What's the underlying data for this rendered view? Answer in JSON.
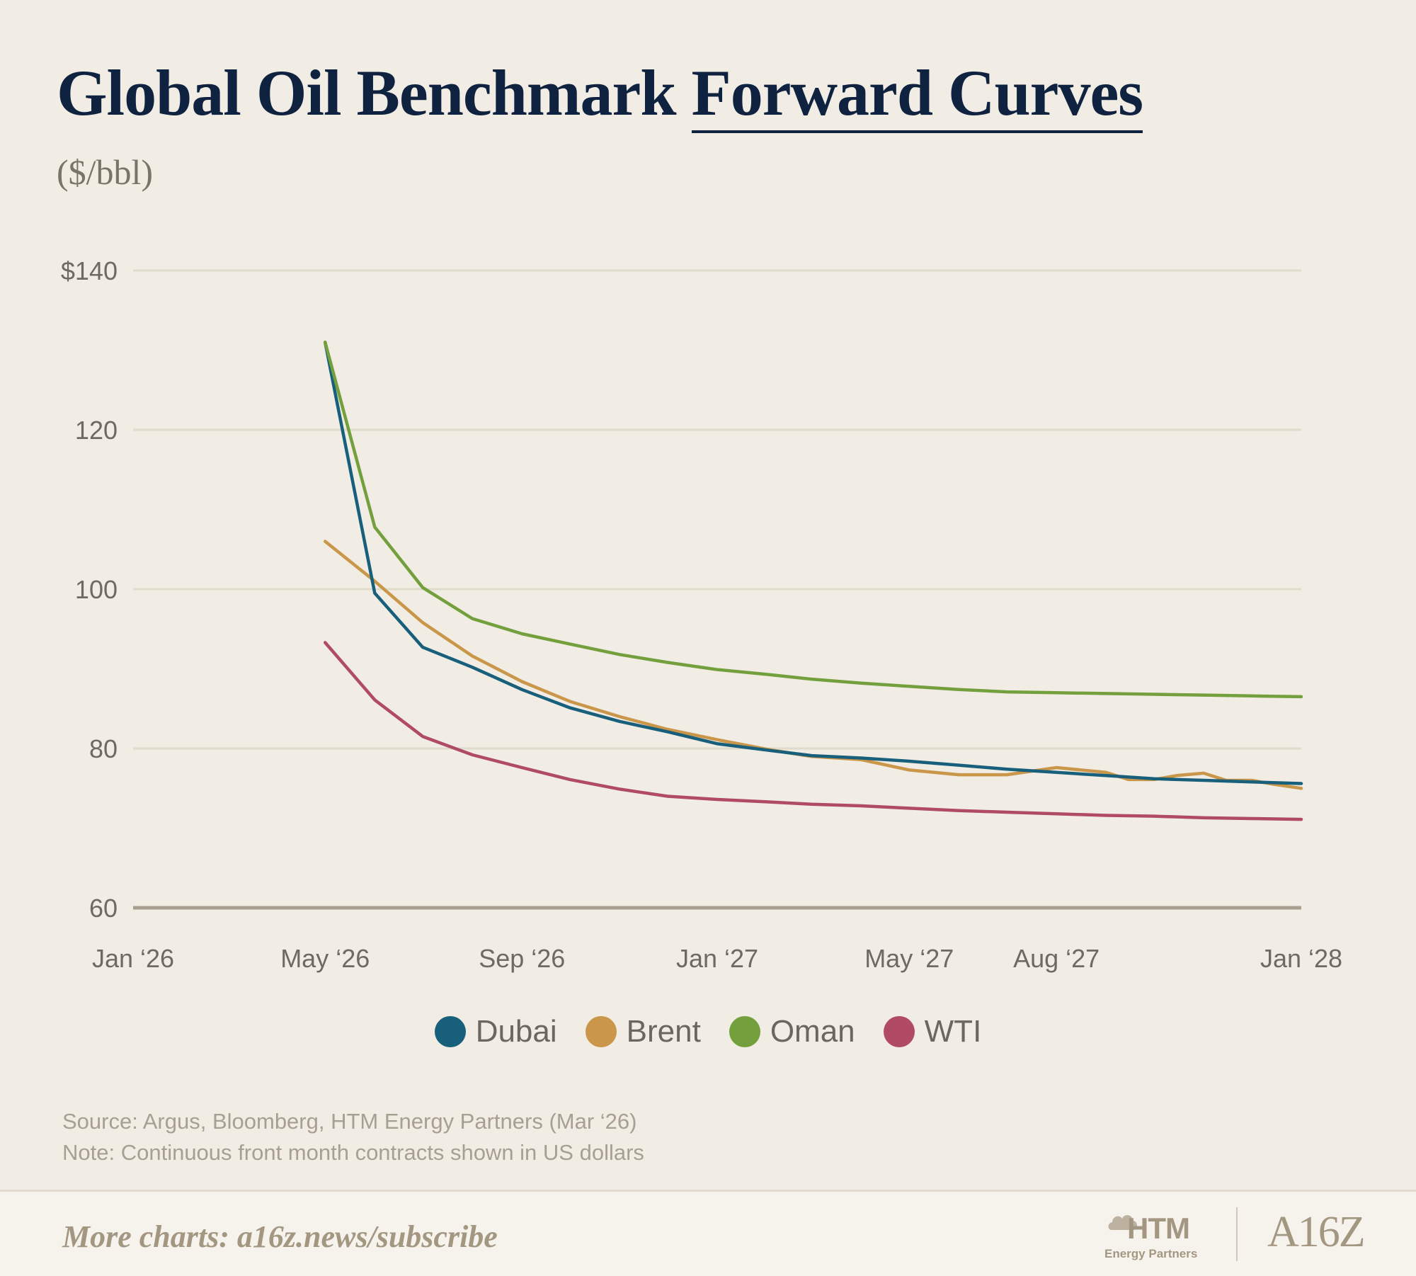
{
  "header": {
    "title_plain": "Global Oil Benchmark",
    "title_underlined": "Forward Curves",
    "subtitle": "($/bbl)"
  },
  "chart_data": {
    "type": "line",
    "title": "Global Oil Benchmark Forward Curves",
    "ylabel": "($/bbl)",
    "xlabel": "",
    "ylim": [
      60,
      140
    ],
    "yticks": [
      60,
      80,
      100,
      120,
      140
    ],
    "ytick_labels": [
      "60",
      "80",
      "100",
      "120",
      "$140"
    ],
    "xlim": [
      "2026-01",
      "2028-01"
    ],
    "xticks": [
      "2026-01",
      "2026-05",
      "2026-09",
      "2027-01",
      "2027-05",
      "2027-08",
      "2028-01"
    ],
    "xtick_labels": [
      "Jan ‘26",
      "May ‘26",
      "Sep ‘26",
      "Jan ‘27",
      "May ‘27",
      "Aug ‘27",
      "Jan ‘28"
    ],
    "grid": "horizontal",
    "legend_position": "bottom-center",
    "series": [
      {
        "name": "Dubai",
        "color": "#185f7b",
        "x": [
          "2026-05",
          "2026-06",
          "2026-07",
          "2026-08",
          "2026-09",
          "2026-10",
          "2026-11",
          "2026-12",
          "2027-01",
          "2027-02",
          "2027-03",
          "2027-04",
          "2027-05",
          "2027-06",
          "2027-07",
          "2027-08",
          "2027-09",
          "2027-10",
          "2027-11",
          "2027-12",
          "2028-01"
        ],
        "y": [
          131,
          99.5,
          92.7,
          90.2,
          87.4,
          85.1,
          83.4,
          82.1,
          80.6,
          79.8,
          79.1,
          78.8,
          78.4,
          77.9,
          77.4,
          77.0,
          76.6,
          76.2,
          76.0,
          75.8,
          75.6
        ]
      },
      {
        "name": "Brent",
        "color": "#c9964a",
        "x": [
          "2026-05",
          "2026-06",
          "2026-07",
          "2026-08",
          "2026-09",
          "2026-10",
          "2026-11",
          "2026-12",
          "2027-01",
          "2027-02",
          "2027-03",
          "2027-04",
          "2027-05",
          "2027-06",
          "2027-07",
          "2027-08",
          "2027-09",
          "2027-09-15",
          "2027-10",
          "2027-10-15",
          "2027-11",
          "2027-11-15",
          "2027-12",
          "2027-12-15",
          "2028-01"
        ],
        "y": [
          106,
          101,
          95.8,
          91.6,
          88.4,
          85.9,
          84.0,
          82.4,
          81.1,
          79.9,
          79.0,
          78.6,
          77.3,
          76.7,
          76.7,
          77.6,
          77.0,
          76.1,
          76.1,
          76.6,
          76.9,
          76.0,
          76.0,
          75.5,
          75.0
        ]
      },
      {
        "name": "Oman",
        "color": "#73a03d",
        "x": [
          "2026-05",
          "2026-06",
          "2026-07",
          "2026-08",
          "2026-09",
          "2026-10",
          "2026-11",
          "2026-12",
          "2027-01",
          "2027-02",
          "2027-03",
          "2027-04",
          "2027-05",
          "2027-06",
          "2027-07",
          "2027-08",
          "2027-09",
          "2027-10",
          "2027-11",
          "2027-12",
          "2028-01"
        ],
        "y": [
          131,
          107.8,
          100.2,
          96.3,
          94.4,
          93.1,
          91.8,
          90.8,
          89.9,
          89.3,
          88.7,
          88.2,
          87.8,
          87.4,
          87.1,
          87.0,
          86.9,
          86.8,
          86.7,
          86.6,
          86.5
        ]
      },
      {
        "name": "WTI",
        "color": "#b04a65",
        "x": [
          "2026-05",
          "2026-06",
          "2026-07",
          "2026-08",
          "2026-09",
          "2026-10",
          "2026-11",
          "2026-12",
          "2027-01",
          "2027-02",
          "2027-03",
          "2027-04",
          "2027-05",
          "2027-06",
          "2027-07",
          "2027-08",
          "2027-09",
          "2027-10",
          "2027-11",
          "2027-12",
          "2028-01"
        ],
        "y": [
          93.3,
          86.1,
          81.5,
          79.2,
          77.6,
          76.1,
          74.9,
          74.0,
          73.6,
          73.3,
          73.0,
          72.8,
          72.5,
          72.2,
          72.0,
          71.8,
          71.6,
          71.5,
          71.3,
          71.2,
          71.1
        ]
      }
    ]
  },
  "legend": {
    "items": [
      {
        "label": "Dubai",
        "color": "#185f7b"
      },
      {
        "label": "Brent",
        "color": "#c9964a"
      },
      {
        "label": "Oman",
        "color": "#73a03d"
      },
      {
        "label": "WTI",
        "color": "#b04a65"
      }
    ]
  },
  "notes": {
    "source": "Source: Argus, Bloomberg, HTM Energy Partners (Mar ‘26)",
    "note": "Note: Continuous front month contracts shown in US dollars"
  },
  "footer": {
    "link_text": "More charts: a16z.news/subscribe",
    "htm_logo_main": "HTM",
    "htm_logo_sub": "Energy Partners",
    "a16z_logo": "A16Z"
  }
}
